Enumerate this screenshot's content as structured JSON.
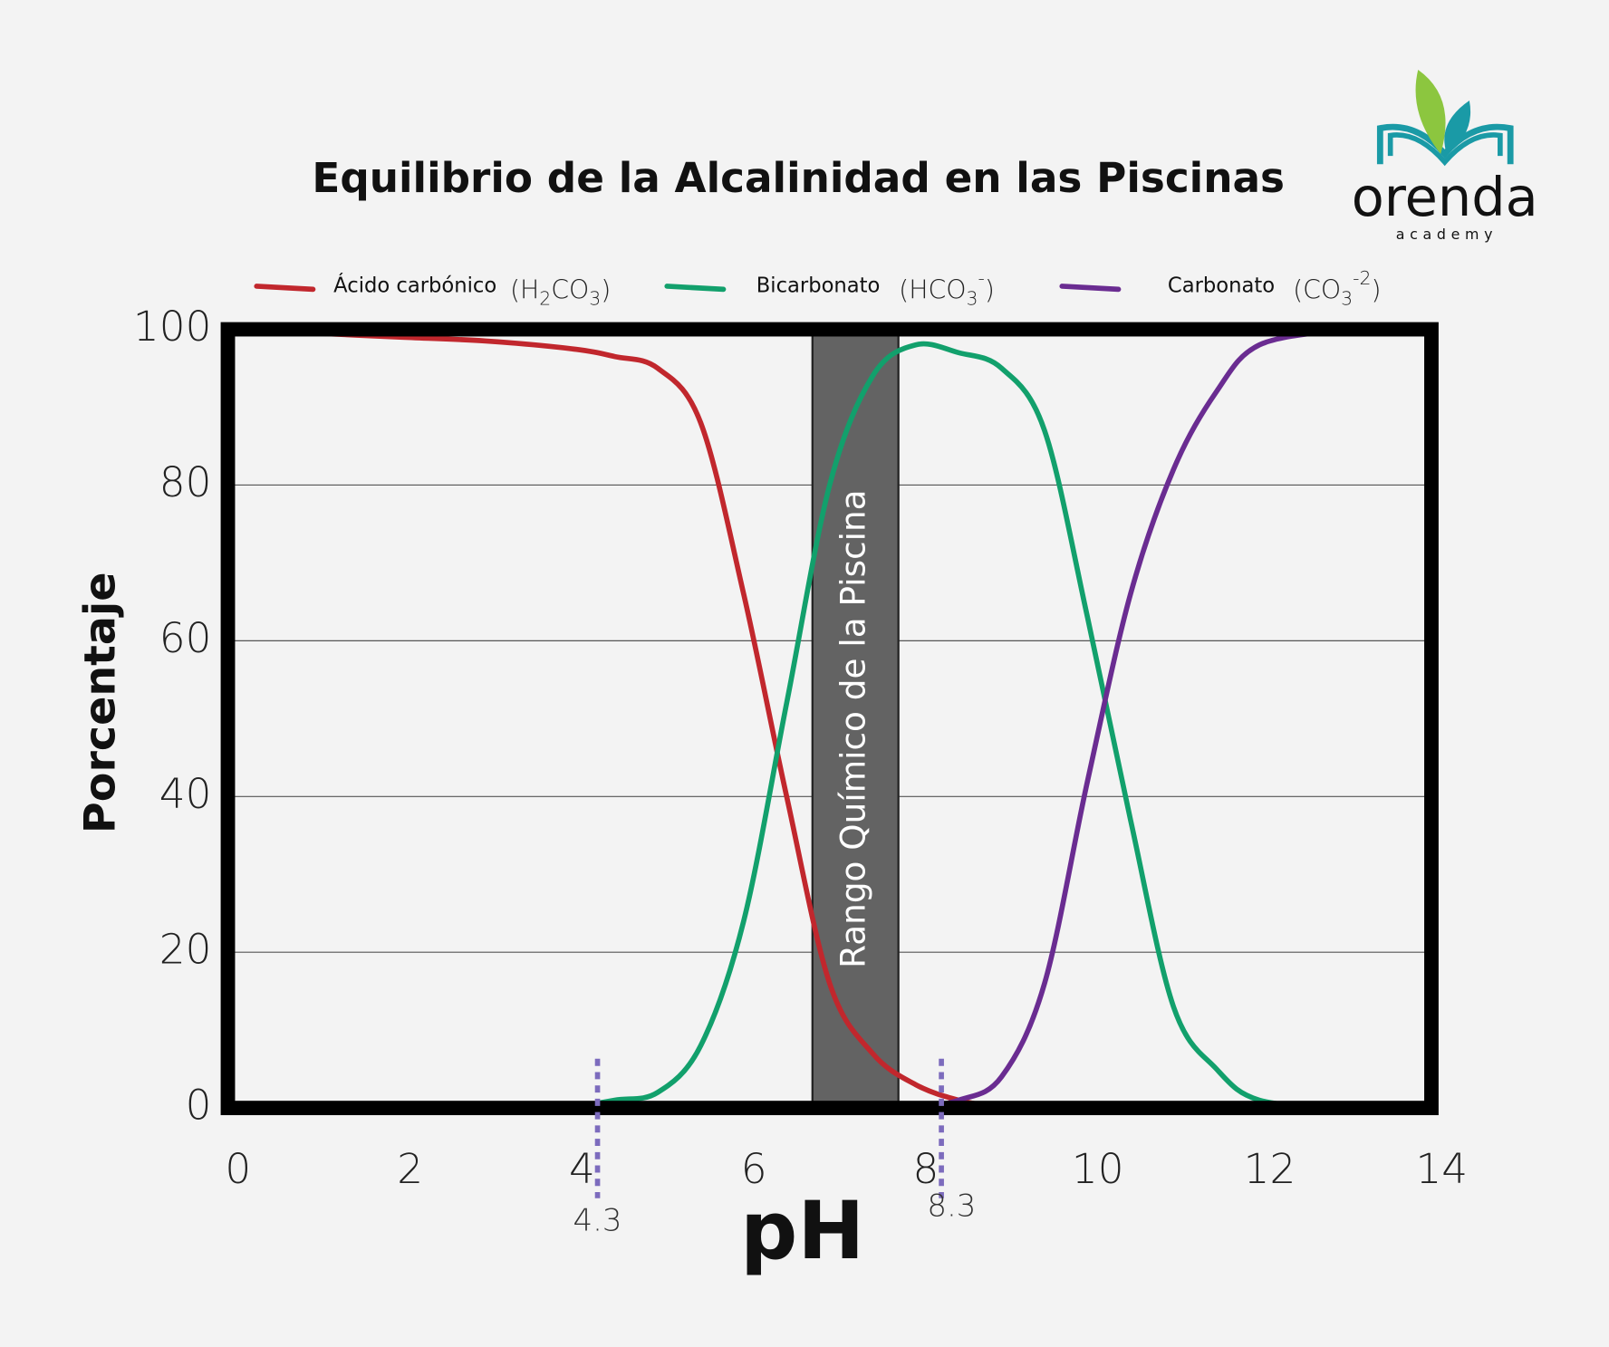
{
  "chart_data": {
    "type": "line",
    "title": "Equilibrio de la Alcalinidad en las Piscinas",
    "xlabel": "pH",
    "ylabel": "Porcentaje",
    "x": [
      0,
      1,
      2,
      3,
      4,
      4.5,
      5,
      5.5,
      6,
      6.5,
      7,
      7.5,
      8,
      8.5,
      9,
      9.5,
      10,
      10.5,
      11,
      11.5,
      12,
      13,
      14
    ],
    "series": [
      {
        "name": "Ácido carbónico",
        "formula": [
          {
            "t": "(H"
          },
          {
            "sub": "2"
          },
          {
            "t": "CO"
          },
          {
            "sub": "3"
          },
          {
            "t": ")"
          }
        ],
        "color": "#c1272d",
        "values": [
          100,
          99.5,
          99,
          98.5,
          97.5,
          96.5,
          95,
          88,
          66,
          40,
          16,
          7,
          3,
          1,
          0,
          null,
          null,
          null,
          null,
          null,
          null,
          null,
          null
        ]
      },
      {
        "name": "Bicarbonato",
        "formula": [
          {
            "t": "(HCO"
          },
          {
            "sub": "3"
          },
          {
            "sup": "-"
          },
          {
            "t": ")"
          }
        ],
        "color": "#12a06c",
        "values": [
          null,
          null,
          null,
          null,
          0,
          1,
          2,
          8,
          24,
          52,
          80,
          94,
          98,
          97,
          95,
          87,
          63,
          37,
          13,
          5,
          1,
          0,
          null
        ]
      },
      {
        "name": "Carbonato",
        "formula": [
          {
            "t": "(CO"
          },
          {
            "sub": "3"
          },
          {
            "sup": "-2"
          },
          {
            "t": ")"
          }
        ],
        "color": "#6a2c91",
        "values": [
          null,
          null,
          null,
          null,
          null,
          null,
          null,
          null,
          null,
          null,
          null,
          null,
          0,
          1,
          4,
          16,
          42,
          66,
          82,
          92,
          98,
          100,
          null
        ]
      }
    ],
    "xlim": [
      0,
      14
    ],
    "xticks": [
      0,
      2,
      4,
      6,
      8,
      10,
      12,
      14
    ],
    "ylim": [
      0,
      100
    ],
    "yticks": [
      0,
      20,
      40,
      60,
      80,
      100
    ],
    "grid": true,
    "markers": [
      4.3,
      8.3
    ],
    "band": {
      "range": [
        6.8,
        7.8
      ],
      "label": "Rango Químico de la Piscina"
    },
    "logo": {
      "name": "orenda",
      "tagline": "academy"
    }
  }
}
